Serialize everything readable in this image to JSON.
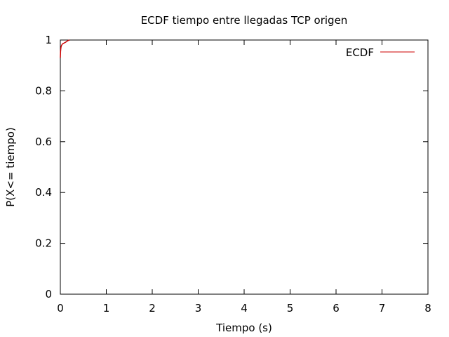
{
  "chart_data": {
    "type": "line",
    "title": "ECDF tiempo entre llegadas TCP origen",
    "xlabel": "Tiempo (s)",
    "ylabel": "P(X<= tiempo)",
    "xlim": [
      0,
      8
    ],
    "ylim": [
      0,
      1
    ],
    "x_ticks": [
      "0",
      "1",
      "2",
      "3",
      "4",
      "5",
      "6",
      "7",
      "8"
    ],
    "y_ticks": [
      "0",
      "0.2",
      "0.4",
      "0.6",
      "0.8",
      "1"
    ],
    "grid": false,
    "legend_position": "top-right",
    "series": [
      {
        "name": "ECDF",
        "color": "#cc0000",
        "x": [
          0.0,
          0.005,
          0.01,
          0.015,
          0.02,
          0.03,
          0.04,
          0.05,
          0.07,
          0.09,
          0.11,
          0.13,
          0.15,
          0.17,
          0.2
        ],
        "y": [
          0.93,
          0.955,
          0.965,
          0.972,
          0.976,
          0.98,
          0.983,
          0.985,
          0.987,
          0.989,
          0.991,
          0.993,
          0.996,
          0.998,
          1.0
        ]
      }
    ]
  }
}
